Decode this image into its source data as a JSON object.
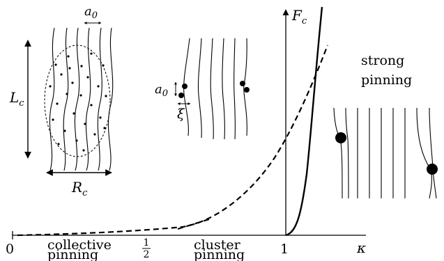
{
  "axes": {
    "x_symbol": "κ",
    "y_symbol": "F",
    "y_sub": "c",
    "tick_zero": "0",
    "tick_half_num": "1",
    "tick_half_den": "2",
    "tick_one": "1"
  },
  "regions": {
    "collective_1": "collective",
    "collective_2": "pinning",
    "cluster_1": "cluster",
    "cluster_2": "pinning",
    "strong_1": "strong",
    "strong_2": "pinning"
  },
  "labels": {
    "a0_main": "a",
    "a0_sub": "0",
    "Lc_main": "L",
    "Lc_sub": "c",
    "Rc_main": "R",
    "Rc_sub": "c",
    "a0b_main": "a",
    "a0b_sub": "0",
    "xi": "ξ"
  },
  "curves": {
    "dashed": "collective/cluster crossover (dashed)",
    "solid": "strong pinning (solid)"
  }
}
